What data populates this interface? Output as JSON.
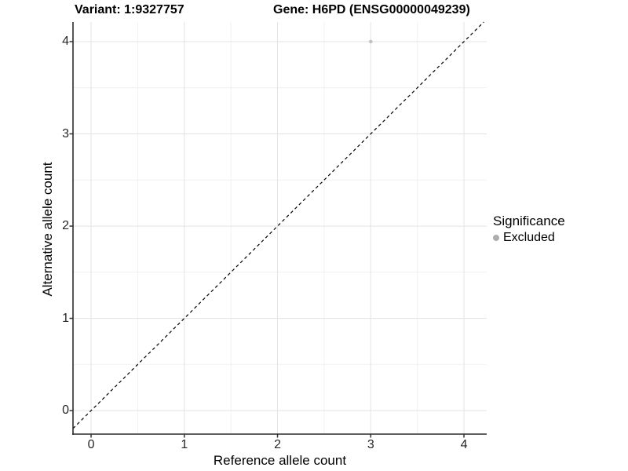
{
  "chart_data": {
    "type": "scatter",
    "title_left": "Variant: 1:9327757",
    "title_right": "Gene: H6PD (ENSG00000049239)",
    "xlabel": "Reference allele count",
    "ylabel": "Alternative allele count",
    "xlim": [
      -0.194,
      4.244
    ],
    "ylim": [
      -0.255,
      4.213
    ],
    "x_ticks": [
      0,
      1,
      2,
      3,
      4
    ],
    "x_minor_ticks": [
      0.5,
      1.5,
      2.5,
      3.5
    ],
    "y_ticks": [
      0,
      1,
      2,
      3,
      4
    ],
    "y_minor_ticks": [
      0.5,
      1.5,
      2.5,
      3.5
    ],
    "grid": "major and minor gridlines on white panel, left and bottom axis lines only",
    "points": [
      {
        "x": 3,
        "y": 4,
        "series": "Excluded"
      }
    ],
    "reference_line": {
      "type": "identity",
      "slope": 1,
      "intercept": 0,
      "style": "dashed",
      "color": "#000000"
    },
    "legend": {
      "title": "Significance",
      "position": "right",
      "items": [
        {
          "label": "Excluded",
          "color": "#adadad",
          "marker": "circle"
        }
      ]
    },
    "colors": {
      "point": "#c1c1c1",
      "grid_major": "#e5e5e5",
      "grid_minor": "#f1f1f1",
      "axis_line": "#2b2b2b",
      "tick_mark": "#333333",
      "tick_label": "#262626",
      "title": "#000000",
      "background": "#ffffff"
    }
  }
}
